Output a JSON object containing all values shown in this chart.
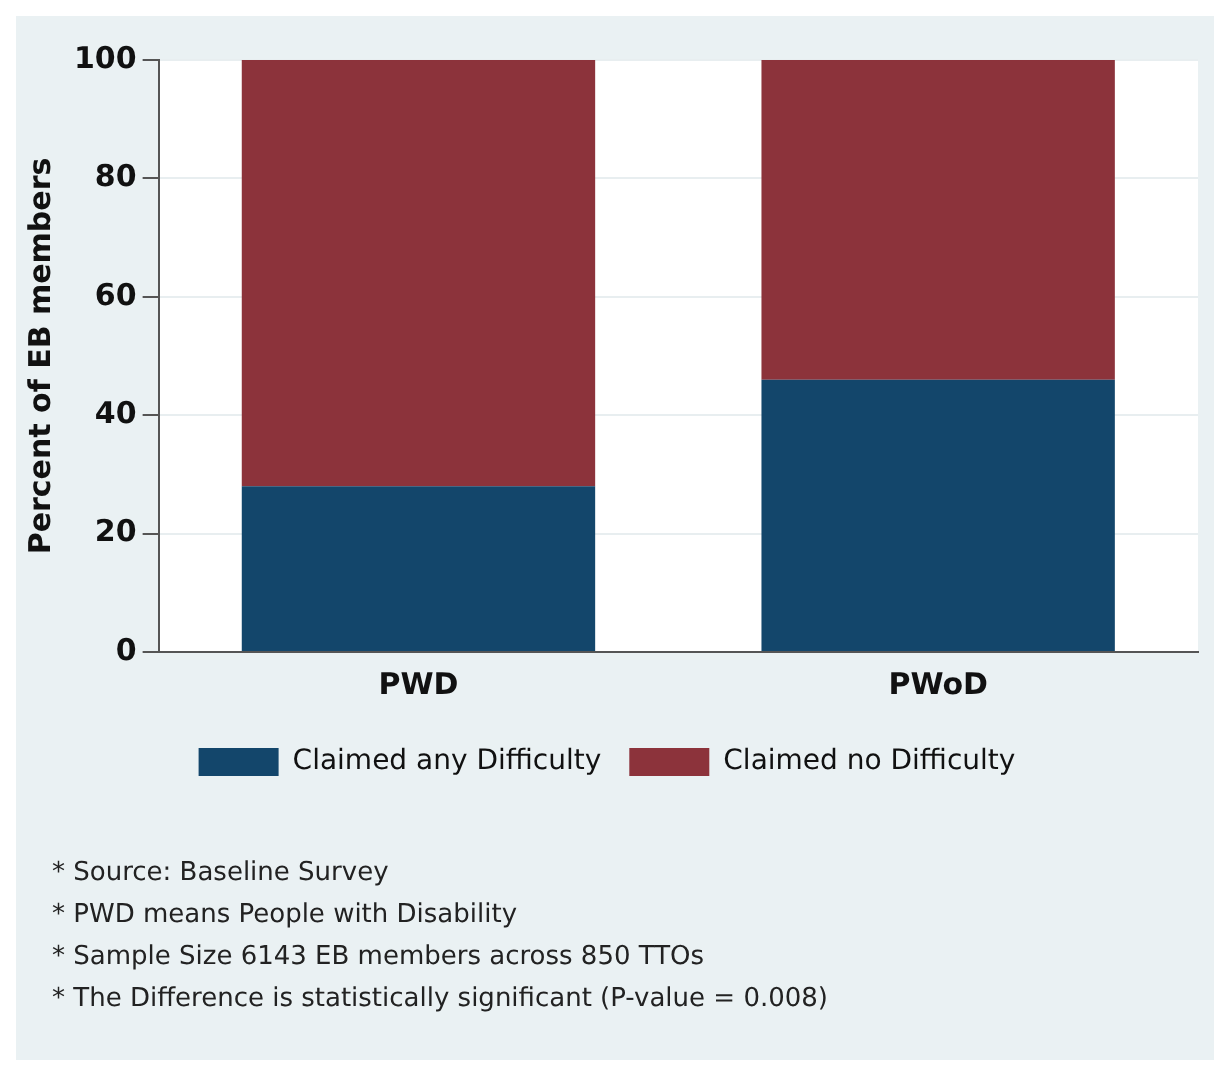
{
  "chart_data": {
    "type": "bar",
    "stacked": true,
    "categories": [
      "PWD",
      "PWoD"
    ],
    "series": [
      {
        "name": "Claimed any Difficulty",
        "color": "#13466b",
        "values": [
          28,
          46
        ]
      },
      {
        "name": "Claimed no Difficulty",
        "color": "#8c333b",
        "values": [
          72,
          54
        ]
      }
    ],
    "ylabel": "Percent of EB members",
    "ylim": [
      0,
      100
    ],
    "yticks": [
      0,
      20,
      40,
      60,
      80,
      100
    ],
    "grid": "y",
    "legend": "bottom",
    "annotations": [
      "* Source: Baseline Survey",
      "* PWD means People with Disability",
      "* Sample Size 6143 EB members across 850 TTOs",
      "* The Difference is statistically significant (P-value = 0.008)"
    ]
  }
}
